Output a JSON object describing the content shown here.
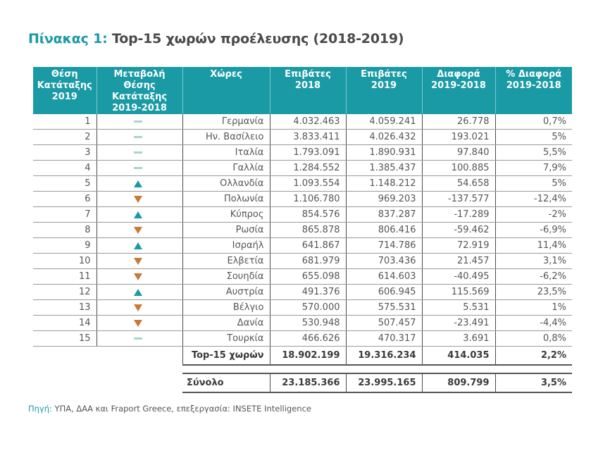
{
  "title": {
    "label": "Πίνακας 1:",
    "text": "Top-15 χωρών προέλευσης (2018-2019)"
  },
  "table": {
    "headers": [
      [
        "Θέση",
        "Κατάταξης",
        "2019"
      ],
      [
        "Μεταβολή",
        "Θέσης Κατάταξης",
        "2019-2018"
      ],
      [
        "Χώρες"
      ],
      [
        "Επιβάτες",
        "2018"
      ],
      [
        "Επιβάτες",
        "2019"
      ],
      [
        "Διαφορά",
        "2019-2018"
      ],
      [
        "% Διαφορά",
        "2019-2018"
      ]
    ],
    "rows": [
      {
        "rank": "1",
        "change": "same",
        "country": "Γερμανία",
        "p2018": "4.032.463",
        "p2019": "4.059.241",
        "diff": "26.778",
        "pct": "0,7%"
      },
      {
        "rank": "2",
        "change": "same",
        "country": "Ην. Βασίλειο",
        "p2018": "3.833.411",
        "p2019": "4.026.432",
        "diff": "193.021",
        "pct": "5%"
      },
      {
        "rank": "3",
        "change": "same",
        "country": "Ιταλία",
        "p2018": "1.793.091",
        "p2019": "1.890.931",
        "diff": "97.840",
        "pct": "5,5%"
      },
      {
        "rank": "4",
        "change": "same",
        "country": "Γαλλία",
        "p2018": "1.284.552",
        "p2019": "1.385.437",
        "diff": "100.885",
        "pct": "7,9%"
      },
      {
        "rank": "5",
        "change": "up",
        "country": "Ολλανδία",
        "p2018": "1.093.554",
        "p2019": "1.148.212",
        "diff": "54.658",
        "pct": "5%"
      },
      {
        "rank": "6",
        "change": "down",
        "country": "Πολωνία",
        "p2018": "1.106.780",
        "p2019": "969.203",
        "diff": "-137.577",
        "pct": "-12,4%"
      },
      {
        "rank": "7",
        "change": "up",
        "country": "Κύπρος",
        "p2018": "854.576",
        "p2019": "837.287",
        "diff": "-17.289",
        "pct": "-2%"
      },
      {
        "rank": "8",
        "change": "down",
        "country": "Ρωσία",
        "p2018": "865.878",
        "p2019": "806.416",
        "diff": "-59.462",
        "pct": "-6,9%"
      },
      {
        "rank": "9",
        "change": "up",
        "country": "Ισραήλ",
        "p2018": "641.867",
        "p2019": "714.786",
        "diff": "72.919",
        "pct": "11,4%"
      },
      {
        "rank": "10",
        "change": "down",
        "country": "Ελβετία",
        "p2018": "681.979",
        "p2019": "703.436",
        "diff": "21.457",
        "pct": "3,1%"
      },
      {
        "rank": "11",
        "change": "down",
        "country": "Σουηδία",
        "p2018": "655.098",
        "p2019": "614.603",
        "diff": "-40.495",
        "pct": "-6,2%"
      },
      {
        "rank": "12",
        "change": "up",
        "country": "Αυστρία",
        "p2018": "491.376",
        "p2019": "606.945",
        "diff": "115.569",
        "pct": "23,5%"
      },
      {
        "rank": "13",
        "change": "down",
        "country": "Βέλγιο",
        "p2018": "570.000",
        "p2019": "575.531",
        "diff": "5.531",
        "pct": "1%"
      },
      {
        "rank": "14",
        "change": "down",
        "country": "Δανία",
        "p2018": "530.948",
        "p2019": "507.457",
        "diff": "-23.491",
        "pct": "-4,4%"
      },
      {
        "rank": "15",
        "change": "same",
        "country": "Τουρκία",
        "p2018": "466.626",
        "p2019": "470.317",
        "diff": "3.691",
        "pct": "0,8%"
      }
    ],
    "top15": {
      "label": "Top-15 χωρών",
      "p2018": "18.902.199",
      "p2019": "19.316.234",
      "diff": "414.035",
      "pct": "2,2%"
    },
    "total": {
      "label": "Σύνολο",
      "p2018": "23.185.366",
      "p2019": "23.995.165",
      "diff": "809.799",
      "pct": "3,5%"
    }
  },
  "change_icons": {
    "up": "triangle-up-icon",
    "down": "triangle-down-icon",
    "same": "dash-icon"
  },
  "colors": {
    "accent": "#1a9aa5",
    "up": "#1a9aa5",
    "down": "#c87a38",
    "same": "#a8d5cf"
  },
  "source": {
    "label": "Πηγή:",
    "text": " ΥΠΑ, ΔΑΑ και Fraport Greece, επεξεργασία: INSETE Intelligence"
  }
}
